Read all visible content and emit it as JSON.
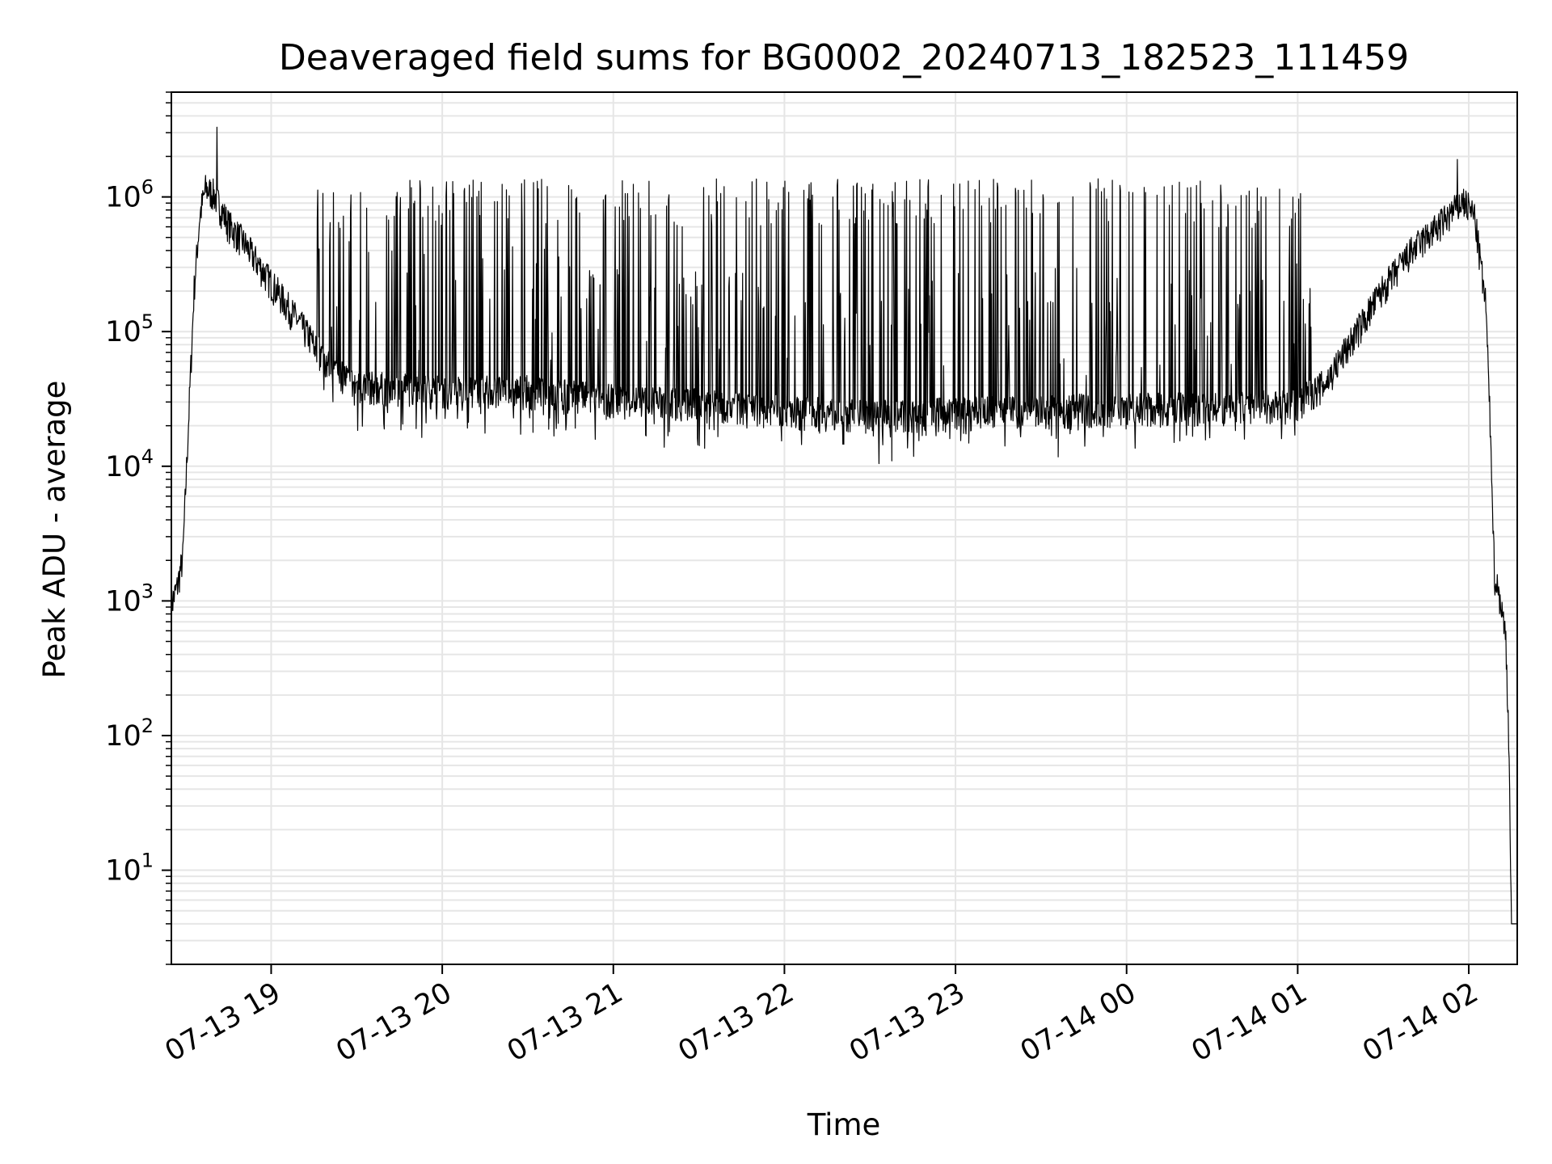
{
  "chart_data": {
    "type": "line",
    "title": "Deaveraged field sums for BG0002_20240713_182523_111459",
    "xlabel": "Time",
    "ylabel": "Peak ADU - average",
    "yscale": "log",
    "grid": true,
    "xlim": [
      "2024-07-13T18:25:00",
      "2024-07-14T02:17:00"
    ],
    "ylim": [
      2,
      6000000
    ],
    "x_ticks": [
      {
        "time": "2024-07-13T19:00",
        "label": "07-13 19"
      },
      {
        "time": "2024-07-13T20:00",
        "label": "07-13 20"
      },
      {
        "time": "2024-07-13T21:00",
        "label": "07-13 21"
      },
      {
        "time": "2024-07-13T22:00",
        "label": "07-13 22"
      },
      {
        "time": "2024-07-13T23:00",
        "label": "07-13 23"
      },
      {
        "time": "2024-07-14T00:00",
        "label": "07-14 00"
      },
      {
        "time": "2024-07-14T01:00",
        "label": "07-14 01"
      },
      {
        "time": "2024-07-14T02:00",
        "label": "07-14 02"
      }
    ],
    "y_ticks": [
      {
        "value": 10,
        "base": "10",
        "exp": "1"
      },
      {
        "value": 100,
        "base": "10",
        "exp": "2"
      },
      {
        "value": 1000,
        "base": "10",
        "exp": "3"
      },
      {
        "value": 10000,
        "base": "10",
        "exp": "4"
      },
      {
        "value": 100000,
        "base": "10",
        "exp": "5"
      },
      {
        "value": 1000000,
        "base": "10",
        "exp": "6"
      }
    ],
    "series": [
      {
        "color": "#000000",
        "baseline": [
          [
            "2024-07-13T18:25",
            900
          ],
          [
            "2024-07-13T18:27",
            1200
          ],
          [
            "2024-07-13T18:29",
            2000
          ],
          [
            "2024-07-13T18:31",
            20000
          ],
          [
            "2024-07-13T18:33",
            200000
          ],
          [
            "2024-07-13T18:35",
            700000
          ],
          [
            "2024-07-13T18:37",
            1100000
          ],
          [
            "2024-07-13T18:40",
            1000000
          ],
          [
            "2024-07-13T18:45",
            600000
          ],
          [
            "2024-07-13T18:50",
            450000
          ],
          [
            "2024-07-13T19:00",
            220000
          ],
          [
            "2024-07-13T19:10",
            110000
          ],
          [
            "2024-07-13T19:20",
            55000
          ],
          [
            "2024-07-13T19:30",
            38000
          ],
          [
            "2024-07-13T20:00",
            35000
          ],
          [
            "2024-07-13T20:30",
            35000
          ],
          [
            "2024-07-13T21:00",
            30000
          ],
          [
            "2024-07-13T21:30",
            28000
          ],
          [
            "2024-07-13T22:00",
            25000
          ],
          [
            "2024-07-13T22:30",
            23000
          ],
          [
            "2024-07-13T23:00",
            24000
          ],
          [
            "2024-07-13T23:30",
            25000
          ],
          [
            "2024-07-14T00:00",
            26000
          ],
          [
            "2024-07-14T00:30",
            26000
          ],
          [
            "2024-07-14T01:00",
            28000
          ],
          [
            "2024-07-14T01:10",
            40000
          ],
          [
            "2024-07-14T01:20",
            90000
          ],
          [
            "2024-07-14T01:30",
            200000
          ],
          [
            "2024-07-14T01:40",
            380000
          ],
          [
            "2024-07-14T01:50",
            600000
          ],
          [
            "2024-07-14T01:58",
            900000
          ],
          [
            "2024-07-14T02:02",
            700000
          ],
          [
            "2024-07-14T02:06",
            150000
          ],
          [
            "2024-07-14T02:08",
            10000
          ],
          [
            "2024-07-14T02:09",
            1500
          ],
          [
            "2024-07-14T02:11",
            1000
          ],
          [
            "2024-07-14T02:13",
            500
          ],
          [
            "2024-07-14T02:14",
            100
          ],
          [
            "2024-07-14T02:15",
            4
          ],
          [
            "2024-07-14T02:17",
            4
          ]
        ],
        "spikes": [
          [
            "2024-07-13T18:41",
            3300000
          ],
          [
            "2024-07-14T01:56",
            1900000
          ]
        ],
        "spike_ranges": [
          {
            "start": "2024-07-13T19:15",
            "end": "2024-07-14T01:05",
            "peak": 1300000
          }
        ]
      }
    ]
  }
}
